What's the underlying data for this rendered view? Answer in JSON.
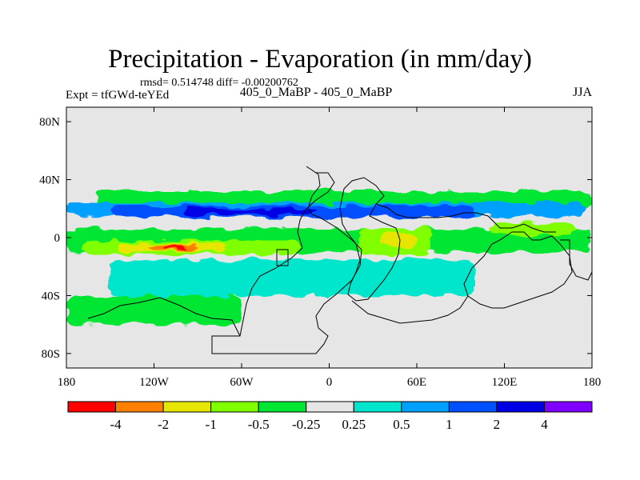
{
  "chart_data": {
    "type": "contour_map",
    "title": "Precipitation - Evaporation (in mm/day)",
    "stats": "rmsd= 0.514748 diff= -0.00200762",
    "experiment": "Expt = tfGWd-teYEd",
    "comparison": "405_0_MaBP - 405_0_MaBP",
    "season": "JJA",
    "x_range": [
      -180,
      180
    ],
    "y_range": [
      -90,
      90
    ],
    "x_ticks": [
      {
        "value": -180,
        "label": "180"
      },
      {
        "value": -120,
        "label": "120W"
      },
      {
        "value": -60,
        "label": "60W"
      },
      {
        "value": 0,
        "label": "0"
      },
      {
        "value": 60,
        "label": "60E"
      },
      {
        "value": 120,
        "label": "120E"
      },
      {
        "value": 180,
        "label": "180"
      }
    ],
    "y_ticks": [
      {
        "value": 80,
        "label": "80N"
      },
      {
        "value": 40,
        "label": "40N"
      },
      {
        "value": 0,
        "label": "0"
      },
      {
        "value": -40,
        "label": "40S"
      },
      {
        "value": -80,
        "label": "80S"
      }
    ],
    "colorbar": {
      "levels": [
        "-4",
        "-2",
        "-1",
        "-0.5",
        "-0.25",
        "0.25",
        "0.5",
        "1",
        "2",
        "4"
      ],
      "colors": [
        "#ff0000",
        "#ff8000",
        "#e6e600",
        "#80ff00",
        "#00e633",
        "#e6e6e6",
        "#00e6cc",
        "#00a0ff",
        "#0050ff",
        "#0000e6",
        "#8000ff"
      ]
    },
    "regions": [
      {
        "band": "-0.25",
        "lon": [
          -160,
          180
        ],
        "lat": [
          20,
          32
        ]
      },
      {
        "band": "-0.25",
        "lon": [
          -180,
          180
        ],
        "lat": [
          -10,
          6
        ]
      },
      {
        "band": "-0.5",
        "lon": [
          -170,
          -20
        ],
        "lat": [
          -12,
          -2
        ]
      },
      {
        "band": "-1",
        "lon": [
          -145,
          -70
        ],
        "lat": [
          -10,
          -4
        ]
      },
      {
        "band": "-2",
        "lon": [
          -125,
          -90
        ],
        "lat": [
          -9,
          -5
        ]
      },
      {
        "band": "-4",
        "lon": [
          -112,
          -98
        ],
        "lat": [
          -8,
          -6
        ]
      },
      {
        "band": "-0.5",
        "lon": [
          20,
          70
        ],
        "lat": [
          -12,
          6
        ]
      },
      {
        "band": "-1",
        "lon": [
          35,
          60
        ],
        "lat": [
          -6,
          3
        ]
      },
      {
        "band": "-0.5",
        "lon": [
          110,
          170
        ],
        "lat": [
          2,
          10
        ]
      },
      {
        "band": "0.5",
        "lon": [
          -180,
          175
        ],
        "lat": [
          15,
          24
        ]
      },
      {
        "band": "1",
        "lon": [
          -150,
          100
        ],
        "lat": [
          14,
          22
        ]
      },
      {
        "band": "2",
        "lon": [
          -100,
          -10
        ],
        "lat": [
          16,
          20
        ]
      },
      {
        "band": "0.25",
        "lon": [
          -150,
          100
        ],
        "lat": [
          -40,
          -15
        ]
      },
      {
        "band": "-0.25",
        "lon": [
          -180,
          -60
        ],
        "lat": [
          -60,
          -40
        ]
      }
    ]
  }
}
